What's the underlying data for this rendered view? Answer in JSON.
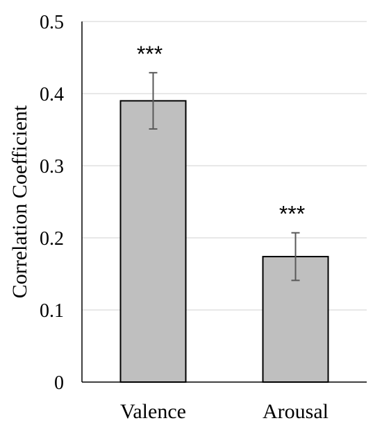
{
  "chart_data": {
    "type": "bar",
    "categories": [
      "Valence",
      "Arousal"
    ],
    "values": [
      0.39,
      0.174
    ],
    "error_bars": [
      {
        "low": 0.351,
        "high": 0.429
      },
      {
        "low": 0.141,
        "high": 0.207
      }
    ],
    "annotations": [
      "***",
      "***"
    ],
    "title": "",
    "xlabel": "",
    "ylabel": "Correlation Coefficient",
    "ylim": [
      0,
      0.5
    ],
    "yticks": [
      "0",
      "0.1",
      "0.2",
      "0.3",
      "0.4",
      "0.5"
    ],
    "grid": true,
    "colors": {
      "bar_fill": "#bfbfbf",
      "bar_stroke": "#000000",
      "error_bar": "#595959",
      "grid": "#d9d9d9",
      "axis": "#000000"
    }
  }
}
